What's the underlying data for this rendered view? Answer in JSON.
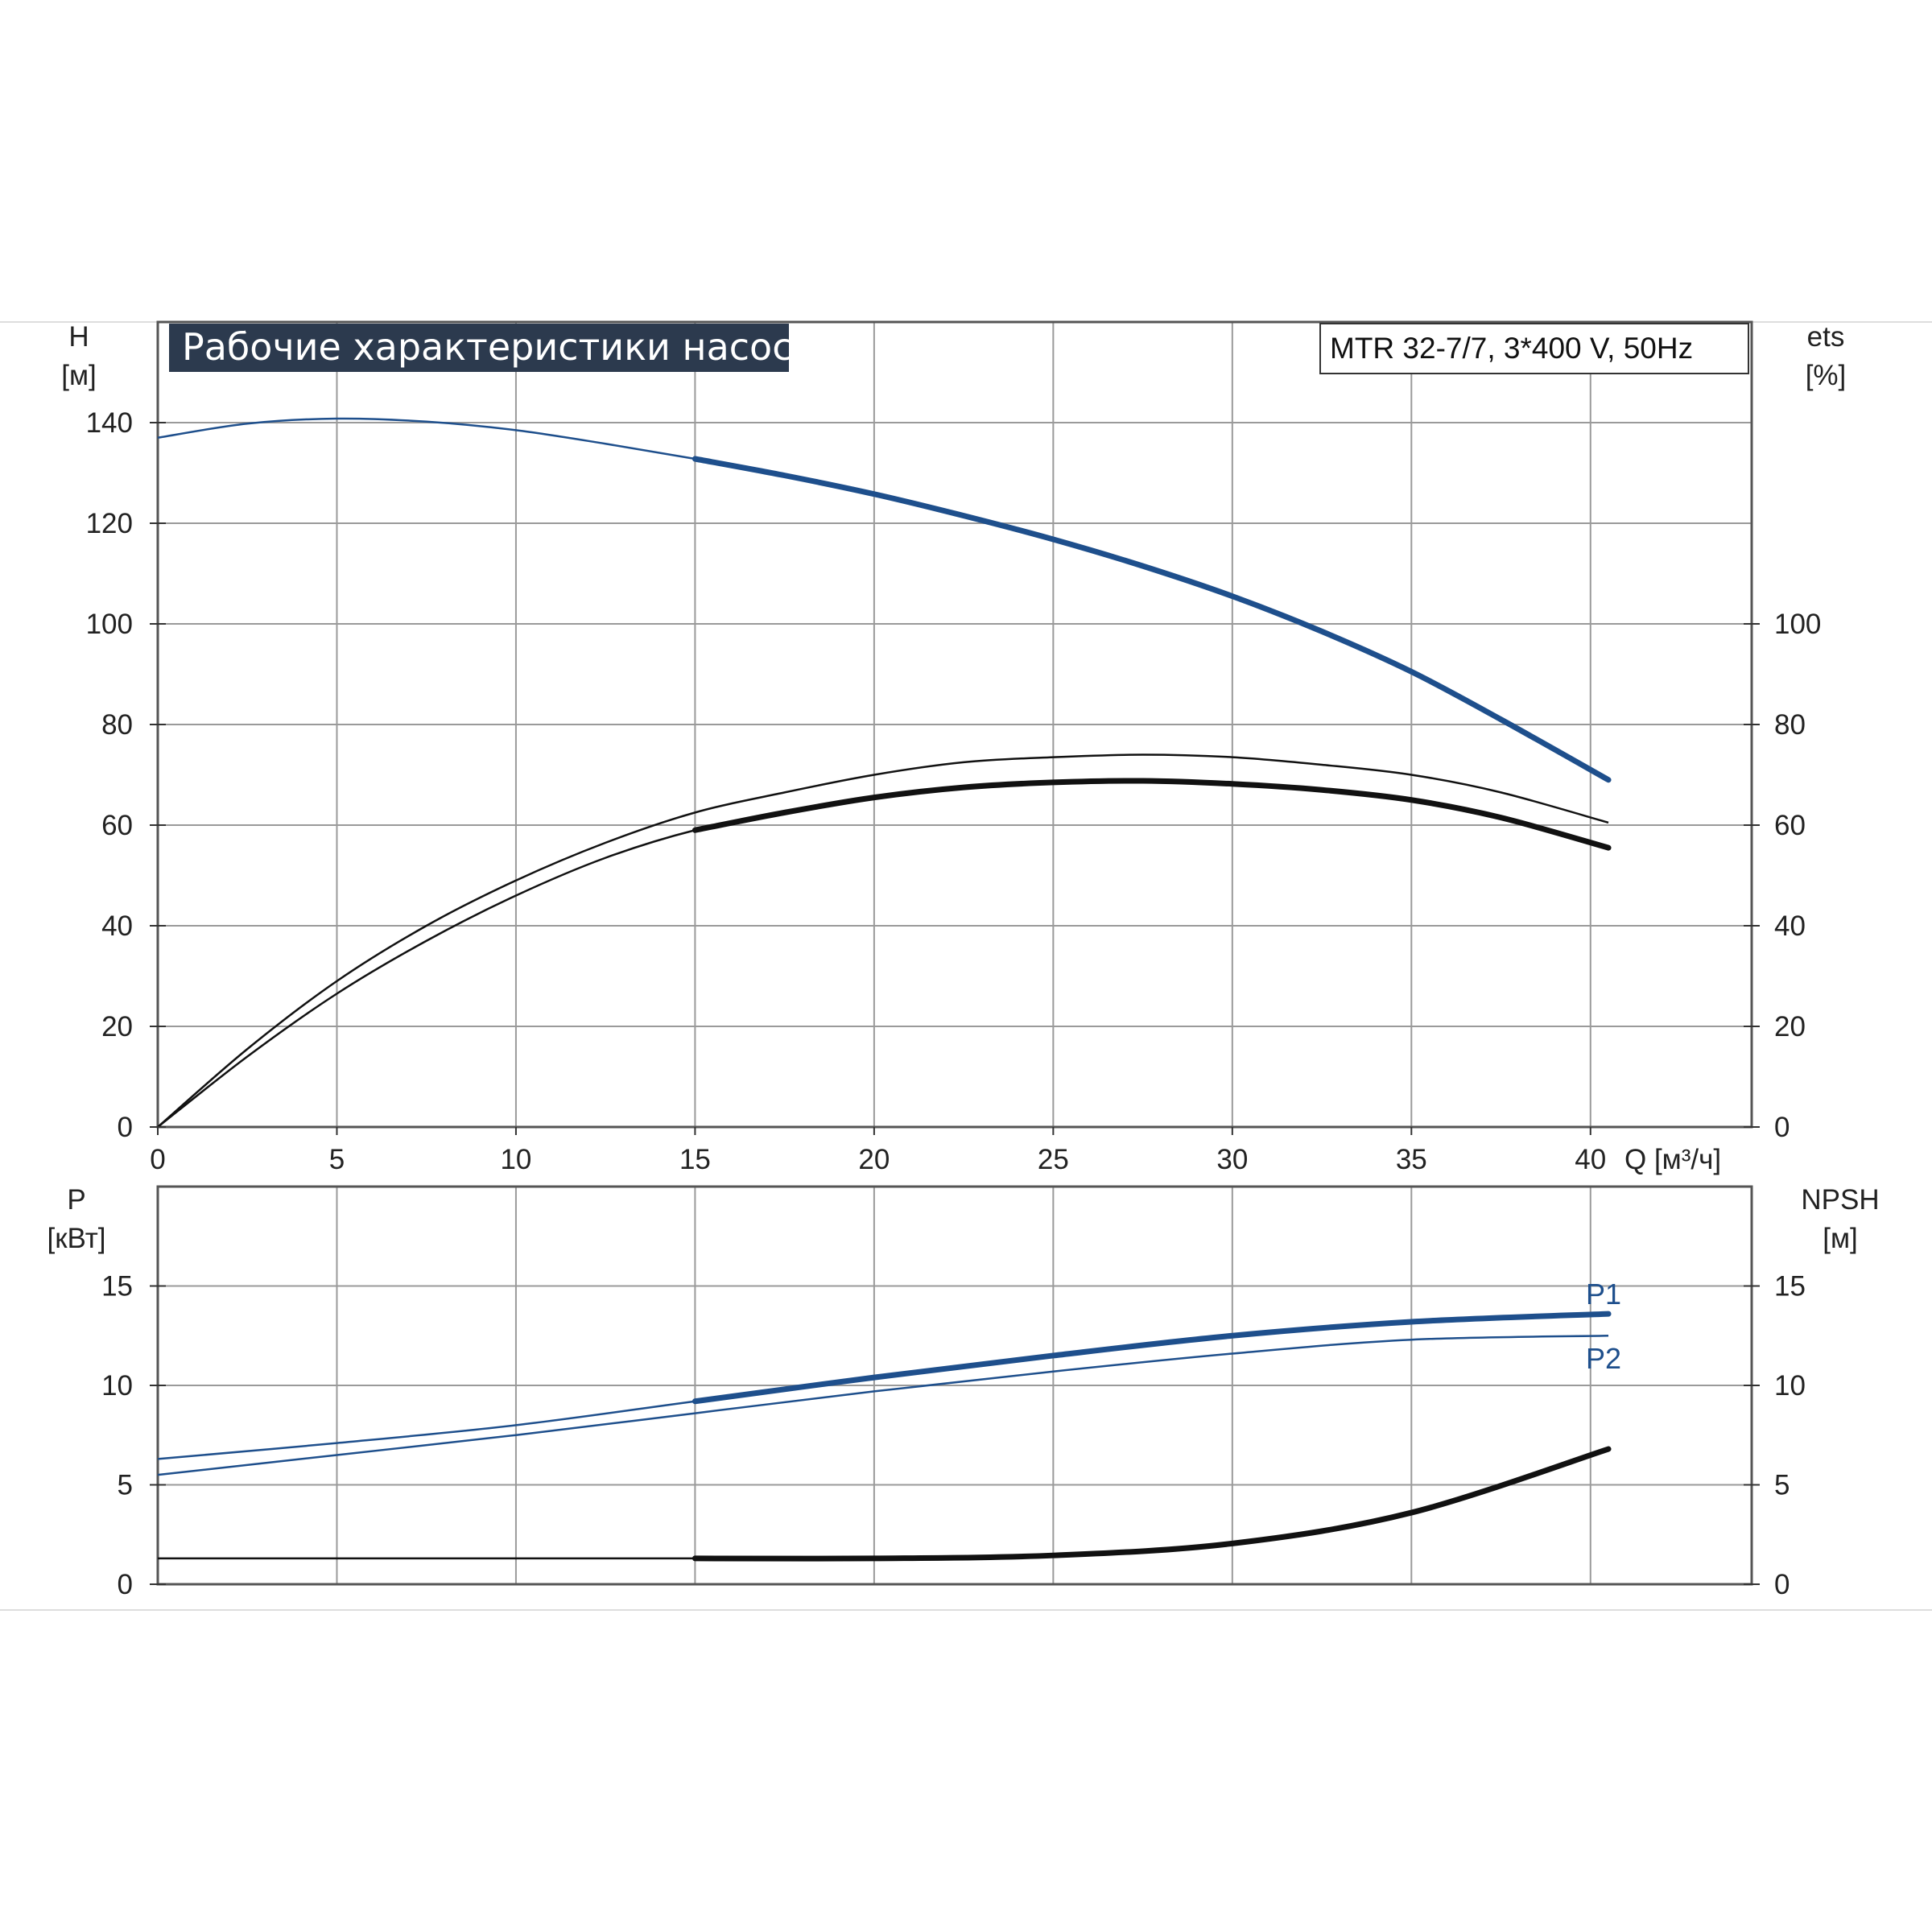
{
  "title": "Рабочие характеристики насоса",
  "model": "MTR 32-7/7, 3*400 V, 50Hz",
  "colors": {
    "blue": "#1e4f8c",
    "black": "#111111",
    "grid": "#9a9a9a",
    "title_bg": "#2c3a4e"
  },
  "chart_data": [
    {
      "type": "line",
      "name": "head-efficiency",
      "x_label": "Q [м³/ч]",
      "y_label_left": {
        "name": "H",
        "unit": "[м]"
      },
      "y_label_right": {
        "name": "ets",
        "unit": "[%]"
      },
      "xlim": [
        0,
        44.5
      ],
      "ylim": [
        0,
        160
      ],
      "x_ticks": [
        "0",
        "5",
        "10",
        "15",
        "20",
        "25",
        "30",
        "35",
        "40"
      ],
      "y_ticks_left": [
        "0",
        "20",
        "40",
        "60",
        "80",
        "100",
        "120",
        "140"
      ],
      "y_ticks_right": [
        "0",
        "20",
        "40",
        "60",
        "80",
        "100"
      ],
      "grid": true,
      "series": [
        {
          "axis": "left",
          "color": "blue",
          "x": [
            0,
            2.5,
            5,
            7.5,
            10,
            12.5,
            15,
            17.5,
            20,
            22.5,
            25,
            27.5,
            30,
            32.5,
            35,
            37.5,
            40.5
          ],
          "values": [
            137,
            139.8,
            140.8,
            140.2,
            138.5,
            135.8,
            132.8,
            129.5,
            125.8,
            121.5,
            116.8,
            111.5,
            105.5,
            98.5,
            90.5,
            81,
            69
          ],
          "heavy_from": 15
        },
        {
          "axis": "right",
          "color": "black",
          "x": [
            0,
            2.5,
            5,
            7.5,
            10,
            12.5,
            15,
            17.5,
            20,
            22.5,
            25,
            27.5,
            30,
            32.5,
            35,
            37.5,
            40.5
          ],
          "values": [
            0,
            15.5,
            29,
            40,
            49,
            56.5,
            62.5,
            66.5,
            70,
            72.5,
            73.5,
            74,
            73.5,
            72,
            70,
            66.5,
            60.5
          ],
          "heavy_from": 40.5
        },
        {
          "axis": "right",
          "color": "black",
          "x": [
            0,
            2.5,
            5,
            7.5,
            10,
            12.5,
            15,
            17.5,
            20,
            22.5,
            25,
            27.5,
            30,
            32.5,
            35,
            37.5,
            40.5
          ],
          "values": [
            0,
            14,
            26.5,
            37,
            46,
            53.5,
            59,
            62.5,
            65.5,
            67.5,
            68.5,
            68.8,
            68.2,
            67,
            65,
            61.5,
            55.5
          ],
          "heavy_from": 15
        }
      ]
    },
    {
      "type": "line",
      "name": "power-npsh",
      "y_label_left": {
        "name": "P",
        "unit": "[кВт]"
      },
      "y_label_right": {
        "name": "NPSH",
        "unit": "[м]"
      },
      "xlim": [
        0,
        44.5
      ],
      "ylim": [
        0,
        20
      ],
      "y_ticks_left": [
        "0",
        "5",
        "10",
        "15"
      ],
      "y_ticks_right": [
        "0",
        "5",
        "10",
        "15"
      ],
      "grid": true,
      "series": [
        {
          "name": "P1",
          "axis": "left",
          "color": "blue",
          "x": [
            0,
            5,
            10,
            15,
            20,
            25,
            30,
            35,
            40.5
          ],
          "values": [
            6.3,
            7.1,
            8,
            9.2,
            10.4,
            11.5,
            12.5,
            13.2,
            13.6
          ],
          "heavy_from": 15
        },
        {
          "name": "P2",
          "axis": "left",
          "color": "blue",
          "x": [
            0,
            5,
            10,
            15,
            20,
            25,
            30,
            35,
            40.5
          ],
          "values": [
            5.5,
            6.5,
            7.5,
            8.6,
            9.7,
            10.7,
            11.6,
            12.3,
            12.5
          ],
          "heavy_from": 40.5
        },
        {
          "axis": "right",
          "color": "black",
          "x": [
            0,
            15,
            20,
            25,
            30,
            35,
            40.5
          ],
          "values": [
            1.3,
            1.3,
            1.3,
            1.45,
            2.05,
            3.6,
            6.8
          ],
          "heavy_from": 15,
          "thin_to": 15,
          "thin_value": 1.3
        }
      ]
    }
  ]
}
